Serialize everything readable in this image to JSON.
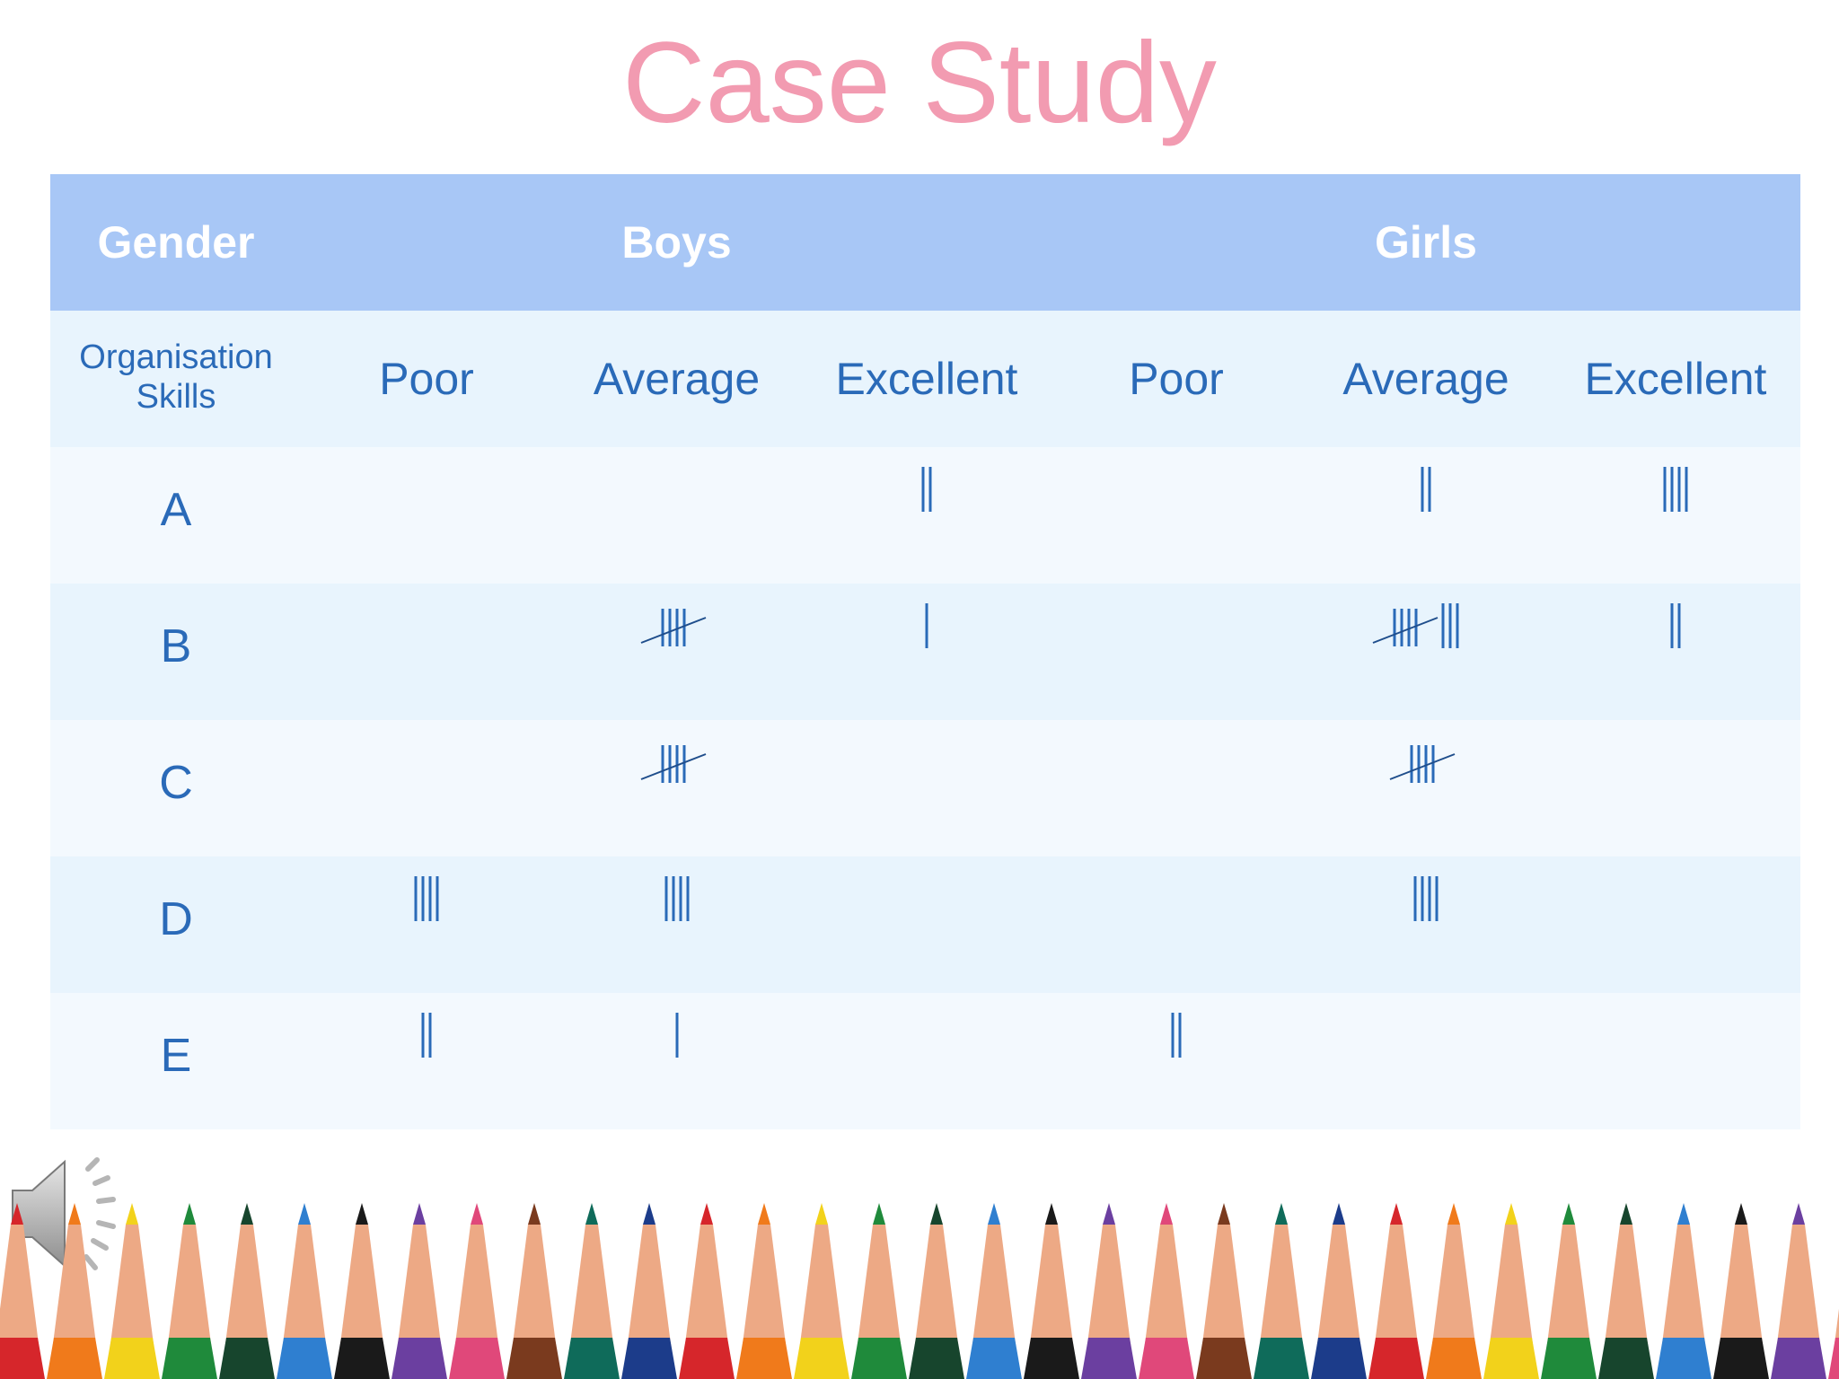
{
  "title": "Case Study",
  "table": {
    "header": {
      "gender": "Gender",
      "boys": "Boys",
      "girls": "Girls"
    },
    "subheader": {
      "skills": "Organisation Skills",
      "columns": [
        "Poor",
        "Average",
        "Excellent",
        "Poor",
        "Average",
        "Excellent"
      ]
    },
    "rows": [
      {
        "label": "A",
        "tallies": [
          0,
          0,
          2,
          0,
          2,
          4
        ]
      },
      {
        "label": "B",
        "tallies": [
          0,
          5,
          1,
          0,
          8,
          2
        ]
      },
      {
        "label": "C",
        "tallies": [
          0,
          5,
          0,
          0,
          5,
          0
        ]
      },
      {
        "label": "D",
        "tallies": [
          4,
          4,
          0,
          0,
          4,
          0
        ]
      },
      {
        "label": "E",
        "tallies": [
          2,
          1,
          0,
          2,
          0,
          0
        ]
      }
    ]
  },
  "colors": {
    "title": "#f29bb1",
    "header_bg": "#a8c7f6",
    "row_alt": "#e8f4fd",
    "row_plain": "#f3f9fe",
    "text": "#2a6ab8",
    "tally_slash": "#1f4e8c"
  },
  "icons": {
    "speaker": "speaker-icon"
  }
}
